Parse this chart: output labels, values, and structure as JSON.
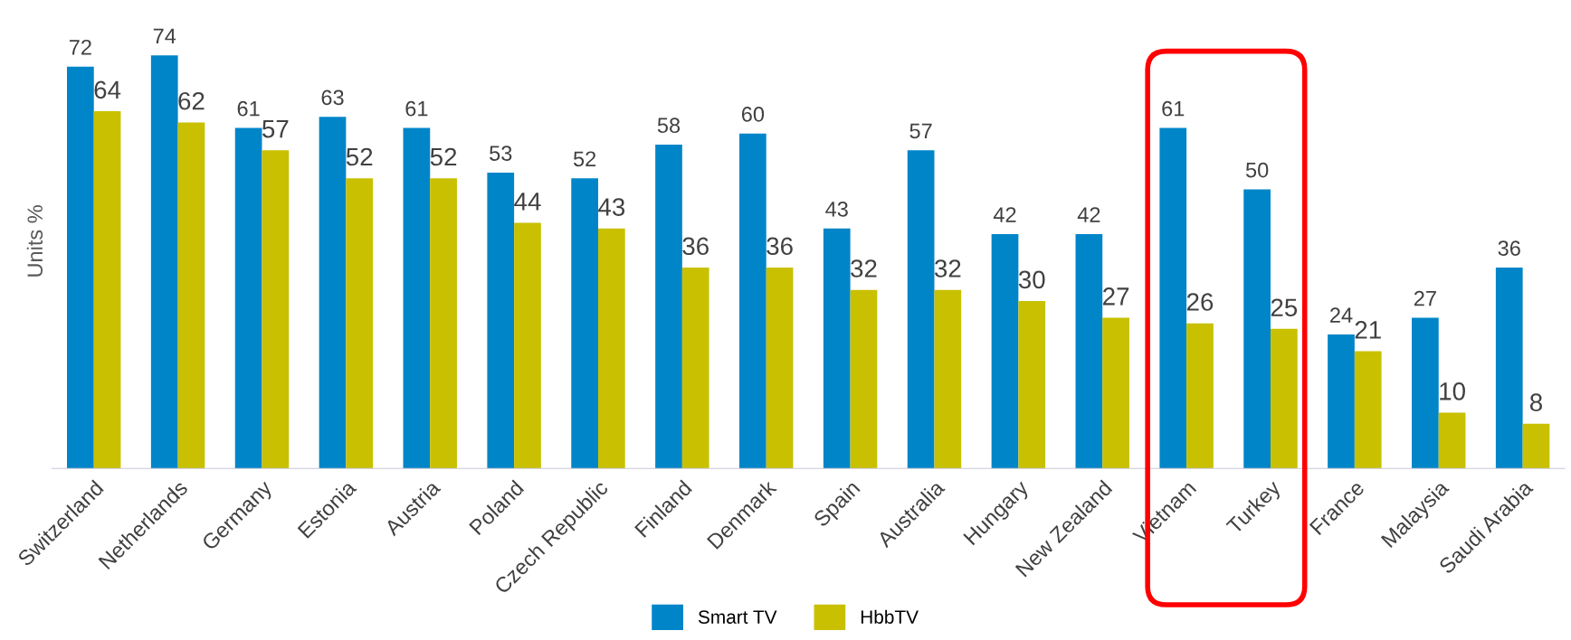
{
  "chart_data": {
    "type": "bar",
    "ylabel": "Units %",
    "categories": [
      "Switzerland",
      "Netherlands",
      "Germany",
      "Estonia",
      "Austria",
      "Poland",
      "Czech Republic",
      "Finland",
      "Denmark",
      "Spain",
      "Australia",
      "Hungary",
      "New Zealand",
      "Vietnam",
      "Turkey",
      "France",
      "Malaysia",
      "Saudi Arabia"
    ],
    "series": [
      {
        "name": "Smart TV",
        "color": "#0085c8",
        "values": [
          72,
          74,
          61,
          63,
          61,
          53,
          52,
          58,
          60,
          43,
          57,
          42,
          42,
          61,
          50,
          24,
          27,
          36
        ]
      },
      {
        "name": "HbbTV",
        "color": "#c8c000",
        "values": [
          64,
          62,
          57,
          52,
          52,
          44,
          43,
          36,
          36,
          32,
          32,
          30,
          27,
          26,
          25,
          21,
          10,
          8
        ]
      }
    ],
    "data_labels": true,
    "legend": "bottom",
    "grid": false
  }
}
